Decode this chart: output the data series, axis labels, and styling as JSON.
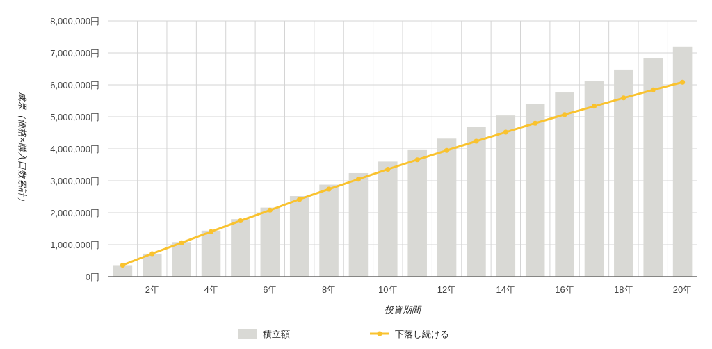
{
  "chart_data": {
    "type": "bar",
    "xlabel": "投資期間",
    "ylabel": "成果（価格×購入口数累計）",
    "categories": [
      null,
      "2年",
      null,
      "4年",
      null,
      "6年",
      null,
      "8年",
      null,
      "10年",
      null,
      "12年",
      null,
      "14年",
      null,
      "16年",
      null,
      "18年",
      null,
      "20年"
    ],
    "series": [
      {
        "name": "積立額",
        "color": "#d9d9d5",
        "values": [
          360000,
          720000,
          1080000,
          1440000,
          1800000,
          2160000,
          2520000,
          2880000,
          3240000,
          3600000,
          3960000,
          4320000,
          4680000,
          5040000,
          5400000,
          5760000,
          6120000,
          6480000,
          6840000,
          7200000
        ]
      },
      {
        "name": "下落し続ける",
        "type": "line",
        "color": "#f9c22e",
        "values": [
          360000,
          720000,
          1060000,
          1410000,
          1750000,
          2080000,
          2420000,
          2740000,
          3050000,
          3360000,
          3660000,
          3950000,
          4240000,
          4520000,
          4800000,
          5070000,
          5330000,
          5590000,
          5840000,
          6080000
        ]
      }
    ],
    "ylim": [
      0,
      8000000
    ],
    "yticks": [
      {
        "value": 0,
        "label": "0円"
      },
      {
        "value": 1000000,
        "label": "1,000,000円"
      },
      {
        "value": 2000000,
        "label": "2,000,000円"
      },
      {
        "value": 3000000,
        "label": "3,000,000円"
      },
      {
        "value": 4000000,
        "label": "4,000,000円"
      },
      {
        "value": 5000000,
        "label": "5,000,000円"
      },
      {
        "value": 6000000,
        "label": "6,000,000円"
      },
      {
        "value": 7000000,
        "label": "7,000,000円"
      },
      {
        "value": 8000000,
        "label": "8,000,000円"
      }
    ],
    "grid": true,
    "legend": "bottom",
    "marker": "circle",
    "line_style": "solid"
  }
}
